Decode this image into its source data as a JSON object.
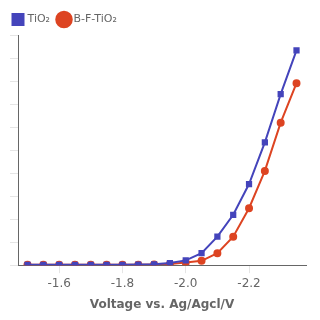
{
  "chart_data": {
    "type": "line",
    "xlabel": "Voltage vs. Ag/Agcl/V",
    "x": [
      -1.5,
      -1.55,
      -1.6,
      -1.65,
      -1.7,
      -1.75,
      -1.8,
      -1.85,
      -1.9,
      -1.95,
      -2.0,
      -2.05,
      -2.1,
      -2.15,
      -2.2,
      -2.25,
      -2.3,
      -2.35
    ],
    "series": [
      {
        "name": "TiO₂",
        "color": "#4444bb",
        "marker": "square",
        "values": [
          0.002,
          0.002,
          0.002,
          0.002,
          0.002,
          0.002,
          0.002,
          0.003,
          0.004,
          0.01,
          0.022,
          0.055,
          0.13,
          0.23,
          0.37,
          0.56,
          0.78,
          0.98
        ]
      },
      {
        "name": "B-F-TiO₂",
        "color": "#dd4422",
        "marker": "circle",
        "values": [
          0.002,
          0.002,
          0.002,
          0.002,
          0.002,
          0.002,
          0.002,
          0.002,
          0.003,
          0.005,
          0.012,
          0.02,
          0.055,
          0.13,
          0.26,
          0.43,
          0.65,
          0.83
        ]
      }
    ],
    "xlim": [
      -1.47,
      -2.38
    ],
    "xticks": [
      -1.6,
      -1.8,
      {
        "value": -2.0,
        "label": "-2.0"
      },
      -2.2
    ],
    "ylim": [
      0,
      1.05
    ],
    "yticks": [
      0,
      0.105,
      0.21,
      0.315,
      0.42,
      0.525,
      0.63,
      0.735,
      0.84,
      0.945,
      1.05
    ],
    "tick_labels": "x",
    "grid": false,
    "legend": "upper left"
  }
}
